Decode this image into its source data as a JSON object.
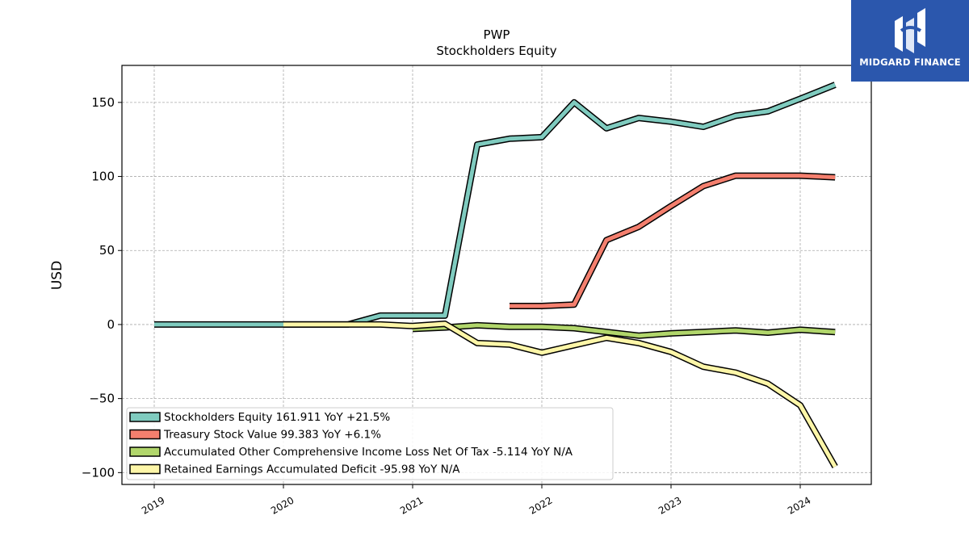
{
  "brand": {
    "name": "MIDGARD FINANCE",
    "color": "#2b57ad"
  },
  "chart_data": {
    "type": "line",
    "title": "PWP",
    "subtitle": "Stockholders  Equity",
    "ylabel": "USD",
    "xlabel": "",
    "xlim": [
      2018.75,
      2024.55
    ],
    "ylim": [
      -108,
      175
    ],
    "yticks": [
      -100,
      -50,
      0,
      50,
      100,
      150
    ],
    "ytick_labels": [
      "−100",
      "−50",
      "0",
      "50",
      "100",
      "150"
    ],
    "xticks": [
      2019,
      2020,
      2021,
      2022,
      2023,
      2024
    ],
    "xtick_labels": [
      "2019",
      "2020",
      "2021",
      "2022",
      "2023",
      "2024"
    ],
    "grid": true,
    "legend_position": "lower-left",
    "series": [
      {
        "name": "Stockholders Equity",
        "legend": "Stockholders Equity  161.911 YoY +21.5%",
        "color": "#7fcbbf",
        "points": [
          [
            2019.0,
            0
          ],
          [
            2020.0,
            0
          ],
          [
            2020.5,
            0
          ],
          [
            2020.75,
            6
          ],
          [
            2021.0,
            6
          ],
          [
            2021.25,
            6
          ],
          [
            2021.5,
            121.5
          ],
          [
            2021.75,
            125.5
          ],
          [
            2022.0,
            126.5
          ],
          [
            2022.25,
            150
          ],
          [
            2022.5,
            132.5
          ],
          [
            2022.75,
            139.5
          ],
          [
            2023.0,
            137
          ],
          [
            2023.25,
            133.5
          ],
          [
            2023.5,
            141
          ],
          [
            2023.75,
            144
          ],
          [
            2024.0,
            152.5
          ],
          [
            2024.27,
            161.9
          ]
        ]
      },
      {
        "name": "Treasury Stock Value",
        "legend": "Treasury Stock Value  99.383 YoY +6.1%",
        "color": "#f47f6e",
        "points": [
          [
            2021.75,
            12.5
          ],
          [
            2022.0,
            12.5
          ],
          [
            2022.25,
            13.5
          ],
          [
            2022.5,
            57
          ],
          [
            2022.75,
            66
          ],
          [
            2023.0,
            80
          ],
          [
            2023.25,
            93.5
          ],
          [
            2023.5,
            100.5
          ],
          [
            2024.0,
            100.5
          ],
          [
            2024.27,
            99.4
          ]
        ]
      },
      {
        "name": "Accumulated Other Comprehensive Income Loss Net Of Tax",
        "legend": "Accumulated Other Comprehensive Income Loss Net Of Tax  -5.114 YoY N/A",
        "color": "#b1d66b",
        "points": [
          [
            2021.0,
            -3
          ],
          [
            2021.25,
            -2
          ],
          [
            2021.5,
            -0.5
          ],
          [
            2021.75,
            -1.5
          ],
          [
            2022.0,
            -1.5
          ],
          [
            2022.25,
            -2.5
          ],
          [
            2022.5,
            -5
          ],
          [
            2022.75,
            -7.5
          ],
          [
            2023.0,
            -6
          ],
          [
            2023.25,
            -5
          ],
          [
            2023.5,
            -4
          ],
          [
            2023.75,
            -5.5
          ],
          [
            2024.0,
            -3.5
          ],
          [
            2024.27,
            -5.1
          ]
        ]
      },
      {
        "name": "Retained Earnings Accumulated Deficit",
        "legend": "Retained Earnings Accumulated Deficit  -95.98 YoY N/A",
        "color": "#fdf6a8",
        "points": [
          [
            2020.0,
            0
          ],
          [
            2020.5,
            0
          ],
          [
            2020.75,
            0
          ],
          [
            2021.0,
            -1
          ],
          [
            2021.25,
            0.5
          ],
          [
            2021.5,
            -12.5
          ],
          [
            2021.75,
            -13.5
          ],
          [
            2022.0,
            -19
          ],
          [
            2022.25,
            -14
          ],
          [
            2022.5,
            -9
          ],
          [
            2022.75,
            -12.5
          ],
          [
            2023.0,
            -18.5
          ],
          [
            2023.25,
            -28.5
          ],
          [
            2023.5,
            -32.5
          ],
          [
            2023.75,
            -40
          ],
          [
            2024.0,
            -54.5
          ],
          [
            2024.27,
            -96
          ]
        ]
      }
    ]
  }
}
